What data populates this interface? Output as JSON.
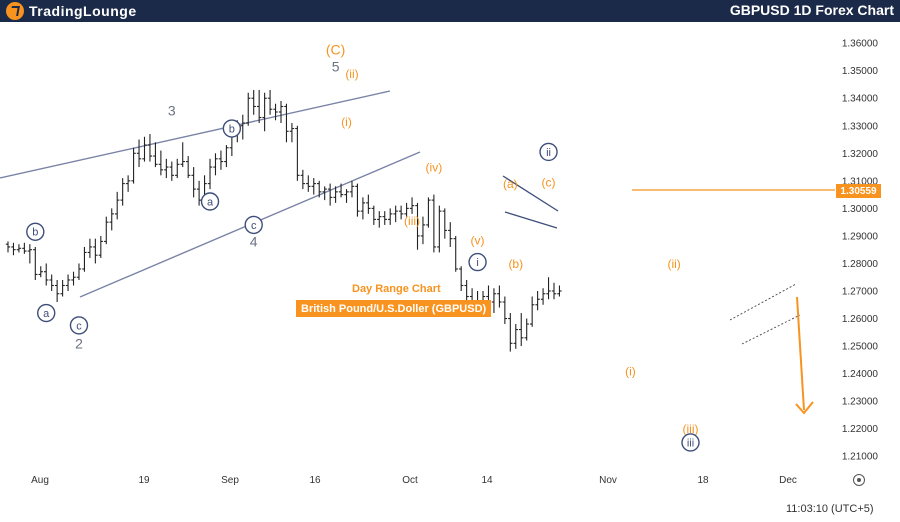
{
  "header": {
    "brand": "TradingLounge",
    "title": "GBPUSD 1D Forex Chart"
  },
  "chart_meta": {
    "subtitle": "Day Range Chart",
    "instrument": "British Pound/U.S.Doller (GBPUSD)",
    "current_price_label": "1.30559",
    "clock": "11:03:10 (UTC+5)"
  },
  "colors": {
    "header_bg": "#1c2a4a",
    "orange": "#f7931e",
    "navy": "#3e4e7a",
    "gray": "#6b7280",
    "candle": "#222222"
  },
  "icons": {
    "logo": "tradinglounge-logo-icon",
    "settings": "gear-icon"
  },
  "chart_data": {
    "type": "ohlc",
    "x_tick_labels": [
      "Aug",
      "19",
      "Sep",
      "16",
      "Oct",
      "14",
      "Nov",
      "18",
      "Dec"
    ],
    "y_ticks": [
      "1.36000",
      "1.35000",
      "1.34000",
      "1.33000",
      "1.32000",
      "1.31000",
      "1.30000",
      "1.29000",
      "1.28000",
      "1.27000",
      "1.26000",
      "1.25000",
      "1.24000",
      "1.23000",
      "1.22000",
      "1.21000"
    ],
    "ylim": [
      1.205,
      1.3655
    ],
    "current_price": 1.30559,
    "bars": [
      {
        "o": 1.287,
        "h": 1.288,
        "l": 1.284,
        "c": 1.286
      },
      {
        "o": 1.286,
        "h": 1.2875,
        "l": 1.283,
        "c": 1.285
      },
      {
        "o": 1.285,
        "h": 1.287,
        "l": 1.284,
        "c": 1.2855
      },
      {
        "o": 1.2855,
        "h": 1.2875,
        "l": 1.2835,
        "c": 1.2845
      },
      {
        "o": 1.2845,
        "h": 1.287,
        "l": 1.28,
        "c": 1.285
      },
      {
        "o": 1.285,
        "h": 1.286,
        "l": 1.274,
        "c": 1.276
      },
      {
        "o": 1.276,
        "h": 1.279,
        "l": 1.275,
        "c": 1.277
      },
      {
        "o": 1.277,
        "h": 1.28,
        "l": 1.272,
        "c": 1.274
      },
      {
        "o": 1.274,
        "h": 1.276,
        "l": 1.27,
        "c": 1.272
      },
      {
        "o": 1.272,
        "h": 1.274,
        "l": 1.266,
        "c": 1.269
      },
      {
        "o": 1.269,
        "h": 1.274,
        "l": 1.268,
        "c": 1.272
      },
      {
        "o": 1.272,
        "h": 1.276,
        "l": 1.27,
        "c": 1.274
      },
      {
        "o": 1.274,
        "h": 1.277,
        "l": 1.272,
        "c": 1.275
      },
      {
        "o": 1.275,
        "h": 1.28,
        "l": 1.274,
        "c": 1.278
      },
      {
        "o": 1.278,
        "h": 1.286,
        "l": 1.277,
        "c": 1.284
      },
      {
        "o": 1.284,
        "h": 1.289,
        "l": 1.282,
        "c": 1.286
      },
      {
        "o": 1.286,
        "h": 1.289,
        "l": 1.28,
        "c": 1.283
      },
      {
        "o": 1.283,
        "h": 1.29,
        "l": 1.282,
        "c": 1.288
      },
      {
        "o": 1.288,
        "h": 1.297,
        "l": 1.287,
        "c": 1.295
      },
      {
        "o": 1.295,
        "h": 1.3,
        "l": 1.292,
        "c": 1.298
      },
      {
        "o": 1.298,
        "h": 1.306,
        "l": 1.296,
        "c": 1.303
      },
      {
        "o": 1.303,
        "h": 1.311,
        "l": 1.301,
        "c": 1.309
      },
      {
        "o": 1.309,
        "h": 1.312,
        "l": 1.306,
        "c": 1.31
      },
      {
        "o": 1.31,
        "h": 1.322,
        "l": 1.309,
        "c": 1.32
      },
      {
        "o": 1.32,
        "h": 1.325,
        "l": 1.315,
        "c": 1.318
      },
      {
        "o": 1.318,
        "h": 1.326,
        "l": 1.317,
        "c": 1.323
      },
      {
        "o": 1.323,
        "h": 1.327,
        "l": 1.317,
        "c": 1.319
      },
      {
        "o": 1.319,
        "h": 1.324,
        "l": 1.315,
        "c": 1.316
      },
      {
        "o": 1.316,
        "h": 1.321,
        "l": 1.312,
        "c": 1.314
      },
      {
        "o": 1.314,
        "h": 1.318,
        "l": 1.311,
        "c": 1.315
      },
      {
        "o": 1.315,
        "h": 1.317,
        "l": 1.31,
        "c": 1.312
      },
      {
        "o": 1.312,
        "h": 1.318,
        "l": 1.311,
        "c": 1.316
      },
      {
        "o": 1.316,
        "h": 1.324,
        "l": 1.315,
        "c": 1.317
      },
      {
        "o": 1.317,
        "h": 1.319,
        "l": 1.311,
        "c": 1.312
      },
      {
        "o": 1.312,
        "h": 1.315,
        "l": 1.304,
        "c": 1.307
      },
      {
        "o": 1.307,
        "h": 1.31,
        "l": 1.301,
        "c": 1.303
      },
      {
        "o": 1.303,
        "h": 1.312,
        "l": 1.3,
        "c": 1.309
      },
      {
        "o": 1.309,
        "h": 1.318,
        "l": 1.307,
        "c": 1.315
      },
      {
        "o": 1.315,
        "h": 1.32,
        "l": 1.312,
        "c": 1.318
      },
      {
        "o": 1.318,
        "h": 1.321,
        "l": 1.314,
        "c": 1.317
      },
      {
        "o": 1.317,
        "h": 1.323,
        "l": 1.315,
        "c": 1.322
      },
      {
        "o": 1.322,
        "h": 1.329,
        "l": 1.319,
        "c": 1.327
      },
      {
        "o": 1.327,
        "h": 1.332,
        "l": 1.324,
        "c": 1.33
      },
      {
        "o": 1.33,
        "h": 1.334,
        "l": 1.325,
        "c": 1.331
      },
      {
        "o": 1.331,
        "h": 1.342,
        "l": 1.33,
        "c": 1.34
      },
      {
        "o": 1.34,
        "h": 1.343,
        "l": 1.334,
        "c": 1.337
      },
      {
        "o": 1.337,
        "h": 1.343,
        "l": 1.331,
        "c": 1.333
      },
      {
        "o": 1.333,
        "h": 1.342,
        "l": 1.328,
        "c": 1.34
      },
      {
        "o": 1.34,
        "h": 1.343,
        "l": 1.334,
        "c": 1.336
      },
      {
        "o": 1.336,
        "h": 1.338,
        "l": 1.332,
        "c": 1.335
      },
      {
        "o": 1.335,
        "h": 1.339,
        "l": 1.331,
        "c": 1.337
      },
      {
        "o": 1.337,
        "h": 1.338,
        "l": 1.324,
        "c": 1.328
      },
      {
        "o": 1.328,
        "h": 1.331,
        "l": 1.324,
        "c": 1.329
      },
      {
        "o": 1.329,
        "h": 1.33,
        "l": 1.31,
        "c": 1.312
      },
      {
        "o": 1.312,
        "h": 1.314,
        "l": 1.307,
        "c": 1.309
      },
      {
        "o": 1.309,
        "h": 1.312,
        "l": 1.306,
        "c": 1.308
      },
      {
        "o": 1.308,
        "h": 1.311,
        "l": 1.305,
        "c": 1.309
      },
      {
        "o": 1.309,
        "h": 1.31,
        "l": 1.304,
        "c": 1.306
      },
      {
        "o": 1.306,
        "h": 1.308,
        "l": 1.303,
        "c": 1.307
      },
      {
        "o": 1.307,
        "h": 1.309,
        "l": 1.301,
        "c": 1.304
      },
      {
        "o": 1.304,
        "h": 1.308,
        "l": 1.302,
        "c": 1.306
      },
      {
        "o": 1.306,
        "h": 1.309,
        "l": 1.304,
        "c": 1.305
      },
      {
        "o": 1.305,
        "h": 1.307,
        "l": 1.302,
        "c": 1.306
      },
      {
        "o": 1.306,
        "h": 1.31,
        "l": 1.304,
        "c": 1.308
      },
      {
        "o": 1.308,
        "h": 1.309,
        "l": 1.297,
        "c": 1.299
      },
      {
        "o": 1.299,
        "h": 1.304,
        "l": 1.296,
        "c": 1.302
      },
      {
        "o": 1.302,
        "h": 1.305,
        "l": 1.298,
        "c": 1.3
      },
      {
        "o": 1.3,
        "h": 1.301,
        "l": 1.294,
        "c": 1.296
      },
      {
        "o": 1.296,
        "h": 1.299,
        "l": 1.293,
        "c": 1.297
      },
      {
        "o": 1.297,
        "h": 1.299,
        "l": 1.294,
        "c": 1.296
      },
      {
        "o": 1.296,
        "h": 1.3,
        "l": 1.294,
        "c": 1.298
      },
      {
        "o": 1.298,
        "h": 1.301,
        "l": 1.295,
        "c": 1.299
      },
      {
        "o": 1.299,
        "h": 1.301,
        "l": 1.296,
        "c": 1.298
      },
      {
        "o": 1.298,
        "h": 1.302,
        "l": 1.297,
        "c": 1.3
      },
      {
        "o": 1.3,
        "h": 1.304,
        "l": 1.298,
        "c": 1.301
      },
      {
        "o": 1.301,
        "h": 1.302,
        "l": 1.285,
        "c": 1.29
      },
      {
        "o": 1.29,
        "h": 1.297,
        "l": 1.287,
        "c": 1.294
      },
      {
        "o": 1.294,
        "h": 1.304,
        "l": 1.293,
        "c": 1.303
      },
      {
        "o": 1.303,
        "h": 1.305,
        "l": 1.284,
        "c": 1.286
      },
      {
        "o": 1.286,
        "h": 1.301,
        "l": 1.284,
        "c": 1.299
      },
      {
        "o": 1.299,
        "h": 1.3,
        "l": 1.289,
        "c": 1.292
      },
      {
        "o": 1.292,
        "h": 1.295,
        "l": 1.286,
        "c": 1.289
      },
      {
        "o": 1.289,
        "h": 1.29,
        "l": 1.277,
        "c": 1.278
      },
      {
        "o": 1.278,
        "h": 1.279,
        "l": 1.27,
        "c": 1.272
      },
      {
        "o": 1.272,
        "h": 1.274,
        "l": 1.266,
        "c": 1.268
      },
      {
        "o": 1.268,
        "h": 1.271,
        "l": 1.263,
        "c": 1.266
      },
      {
        "o": 1.266,
        "h": 1.27,
        "l": 1.261,
        "c": 1.265
      },
      {
        "o": 1.265,
        "h": 1.27,
        "l": 1.262,
        "c": 1.268
      },
      {
        "o": 1.268,
        "h": 1.272,
        "l": 1.264,
        "c": 1.266
      },
      {
        "o": 1.266,
        "h": 1.271,
        "l": 1.262,
        "c": 1.269
      },
      {
        "o": 1.269,
        "h": 1.272,
        "l": 1.264,
        "c": 1.266
      },
      {
        "o": 1.266,
        "h": 1.268,
        "l": 1.258,
        "c": 1.26
      },
      {
        "o": 1.26,
        "h": 1.262,
        "l": 1.248,
        "c": 1.251
      },
      {
        "o": 1.251,
        "h": 1.258,
        "l": 1.249,
        "c": 1.256
      },
      {
        "o": 1.256,
        "h": 1.262,
        "l": 1.25,
        "c": 1.253
      },
      {
        "o": 1.253,
        "h": 1.26,
        "l": 1.252,
        "c": 1.258
      },
      {
        "o": 1.258,
        "h": 1.268,
        "l": 1.257,
        "c": 1.265
      },
      {
        "o": 1.265,
        "h": 1.27,
        "l": 1.263,
        "c": 1.267
      },
      {
        "o": 1.267,
        "h": 1.271,
        "l": 1.265,
        "c": 1.269
      },
      {
        "o": 1.269,
        "h": 1.275,
        "l": 1.267,
        "c": 1.27
      },
      {
        "o": 1.27,
        "h": 1.273,
        "l": 1.267,
        "c": 1.269
      },
      {
        "o": 1.269,
        "h": 1.272,
        "l": 1.268,
        "c": 1.27
      }
    ],
    "wave_labels": [
      {
        "text": "b",
        "style": "circle-navy",
        "bar": 5,
        "price": 1.2915
      },
      {
        "text": "a",
        "style": "circle-navy",
        "bar": 7,
        "price": 1.262
      },
      {
        "text": "c",
        "style": "circle-navy",
        "bar": 13,
        "price": 1.2575
      },
      {
        "text": "2",
        "style": "gray",
        "bar": 13,
        "price": 1.251
      },
      {
        "text": "3",
        "style": "gray",
        "bar": 30,
        "price": 1.3355
      },
      {
        "text": "b",
        "style": "circle-navy",
        "bar": 41,
        "price": 1.329
      },
      {
        "text": "a",
        "style": "circle-navy",
        "bar": 37,
        "price": 1.3025
      },
      {
        "text": "c",
        "style": "circle-navy",
        "bar": 45,
        "price": 1.294
      },
      {
        "text": "4",
        "style": "gray",
        "bar": 45,
        "price": 1.288
      },
      {
        "text": "(C)",
        "style": "orange",
        "bar": 60,
        "price": 1.3577
      },
      {
        "text": "5",
        "style": "gray",
        "bar": 60,
        "price": 1.3515
      },
      {
        "text": "(ii)",
        "style": "orange",
        "bar": 63,
        "price": 1.349
      },
      {
        "text": "(i)",
        "style": "orange",
        "bar": 62,
        "price": 1.3315
      },
      {
        "text": "(iv)",
        "style": "orange",
        "bar": 78,
        "price": 1.315
      },
      {
        "text": "(iii)",
        "style": "orange",
        "bar": 74,
        "price": 1.2955
      },
      {
        "text": "(v)",
        "style": "orange",
        "bar": 86,
        "price": 1.2885
      },
      {
        "text": "i",
        "style": "circle-navy",
        "bar": 86,
        "price": 1.2805
      },
      {
        "text": "(a)",
        "style": "orange",
        "bar": 92,
        "price": 1.309
      },
      {
        "text": "(b)",
        "style": "orange",
        "bar": 93,
        "price": 1.28
      },
      {
        "text": "ii",
        "style": "circle-navy",
        "bar": 99,
        "price": 1.3205
      },
      {
        "text": "(c)",
        "style": "orange",
        "bar": 99,
        "price": 1.3095
      },
      {
        "text": "(ii)",
        "style": "orange",
        "bar": 122,
        "price": 1.28
      },
      {
        "text": "(i)",
        "style": "orange",
        "bar": 114,
        "price": 1.2408
      },
      {
        "text": "(iii)",
        "style": "orange",
        "bar": 125,
        "price": 1.22
      },
      {
        "text": "iii",
        "style": "circle-navy",
        "bar": 125,
        "price": 1.215
      }
    ]
  }
}
